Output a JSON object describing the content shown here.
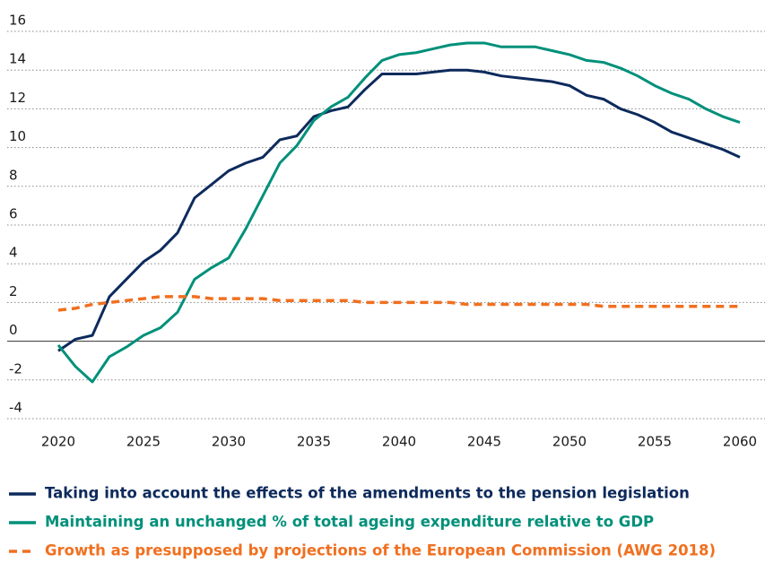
{
  "chart_data": {
    "type": "line",
    "x": [
      2020,
      2021,
      2022,
      2023,
      2024,
      2025,
      2026,
      2027,
      2028,
      2029,
      2030,
      2031,
      2032,
      2033,
      2034,
      2035,
      2036,
      2037,
      2038,
      2039,
      2040,
      2041,
      2042,
      2043,
      2044,
      2045,
      2046,
      2047,
      2048,
      2049,
      2050,
      2051,
      2052,
      2053,
      2054,
      2055,
      2056,
      2057,
      2058,
      2059,
      2060
    ],
    "series": [
      {
        "name": "Taking into account the effects of the amendments to the pension legislation",
        "color": "#0d2a5c",
        "dash": false,
        "values": [
          -0.5,
          0.1,
          0.3,
          2.3,
          3.2,
          4.1,
          4.7,
          5.6,
          7.4,
          8.1,
          8.8,
          9.2,
          9.5,
          10.4,
          10.6,
          11.6,
          11.9,
          12.1,
          13.0,
          13.8,
          13.8,
          13.8,
          13.9,
          14.0,
          14.0,
          13.9,
          13.7,
          13.6,
          13.5,
          13.4,
          13.2,
          12.7,
          12.5,
          12.0,
          11.7,
          11.3,
          10.8,
          10.5,
          10.2,
          9.9,
          9.5
        ]
      },
      {
        "name": "Maintaining an unchanged % of total ageing expenditure relative to GDP",
        "color": "#00907a",
        "dash": false,
        "values": [
          -0.2,
          -1.3,
          -2.1,
          -0.8,
          -0.3,
          0.3,
          0.7,
          1.5,
          3.2,
          3.8,
          4.3,
          5.8,
          7.5,
          9.2,
          10.1,
          11.4,
          12.1,
          12.6,
          13.6,
          14.5,
          14.8,
          14.9,
          15.1,
          15.3,
          15.4,
          15.4,
          15.2,
          15.2,
          15.2,
          15.0,
          14.8,
          14.5,
          14.4,
          14.1,
          13.7,
          13.2,
          12.8,
          12.5,
          12.0,
          11.6,
          11.3
        ]
      },
      {
        "name": "Growth as presupposed by projections of the European Commission (AWG 2018)",
        "color": "#f07020",
        "dash": true,
        "values": [
          1.6,
          1.7,
          1.9,
          2.0,
          2.1,
          2.2,
          2.3,
          2.3,
          2.3,
          2.2,
          2.2,
          2.2,
          2.2,
          2.1,
          2.1,
          2.1,
          2.1,
          2.1,
          2.0,
          2.0,
          2.0,
          2.0,
          2.0,
          2.0,
          1.9,
          1.9,
          1.9,
          1.9,
          1.9,
          1.9,
          1.9,
          1.9,
          1.8,
          1.8,
          1.8,
          1.8,
          1.8,
          1.8,
          1.8,
          1.8,
          1.8
        ]
      }
    ],
    "xlim": [
      2020,
      2060
    ],
    "xticks": [
      2020,
      2025,
      2030,
      2035,
      2040,
      2045,
      2050,
      2055,
      2060
    ],
    "ylim": [
      -4,
      16
    ],
    "yticks": [
      -4,
      -2,
      0,
      2,
      4,
      6,
      8,
      10,
      12,
      14,
      16
    ],
    "grid": true
  }
}
